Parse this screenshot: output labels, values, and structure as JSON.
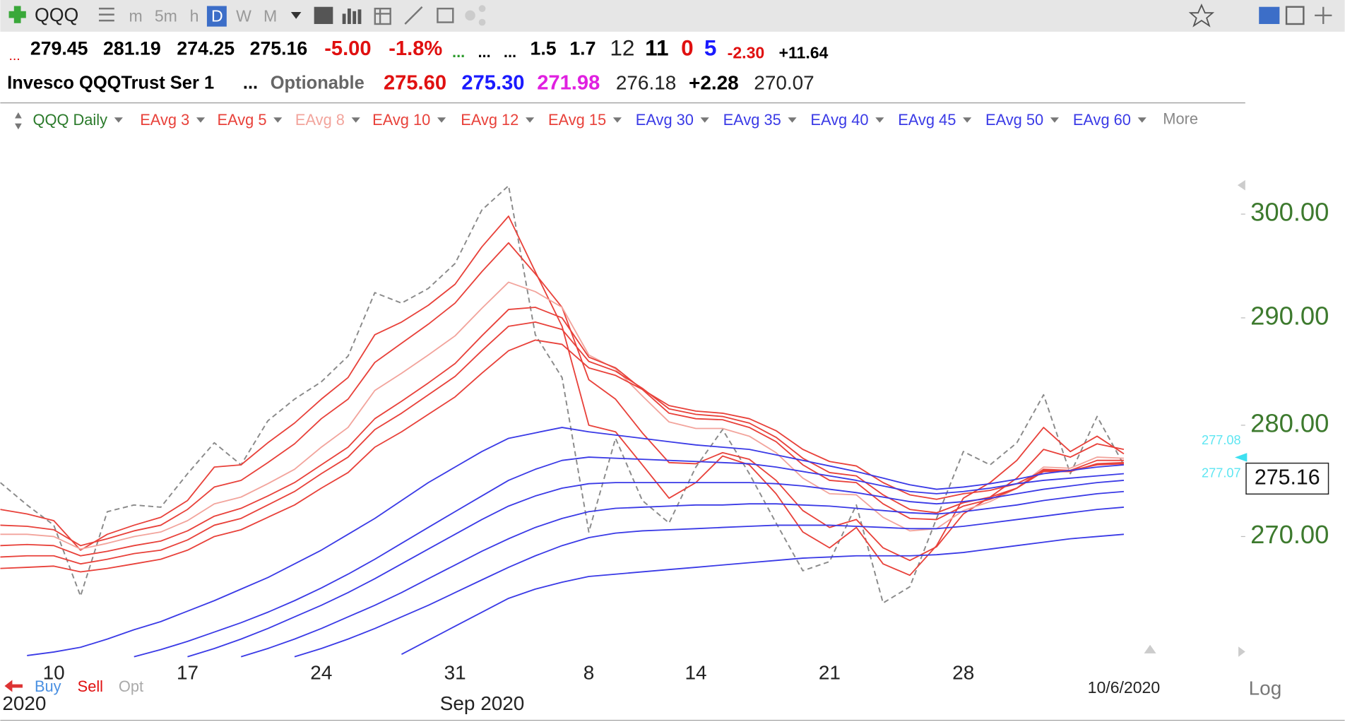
{
  "toolbar": {
    "symbol": "QQQ",
    "periods": [
      "m",
      "5m",
      "h",
      "D",
      "W",
      "M"
    ]
  },
  "quote": {
    "line1": [
      "...",
      "279.45",
      "281.19",
      "274.25",
      "275.16",
      "-5.00",
      "-1.8%",
      "...",
      "...",
      "...",
      "1.5",
      "1.7",
      "12",
      "11",
      "0",
      "5",
      "-2.30",
      "+11.64"
    ],
    "line2": [
      "Invesco QQQTrust Ser 1",
      "...",
      "Optionable",
      "275.60",
      "275.30",
      "271.98",
      "276.18",
      "+2.28",
      "270.07"
    ]
  },
  "legend_more": "More",
  "chart_data": {
    "type": "line",
    "categories": [
      null,
      null,
      "10",
      null,
      null,
      null,
      null,
      "17",
      null,
      null,
      null,
      null,
      "24",
      null,
      null,
      null,
      null,
      "31",
      null,
      null,
      null,
      null,
      "8",
      null,
      null,
      null,
      "14",
      null,
      null,
      null,
      null,
      "21",
      null,
      null,
      null,
      null,
      "28",
      null,
      null,
      null,
      null,
      null,
      null
    ],
    "period_labels": [
      "2020",
      "Sep 2020"
    ],
    "last_date": "10/6/2020",
    "log": true,
    "ylim": [
      259.3,
      308.5
    ],
    "yticks": [
      {
        "value": 270,
        "label": "270.00"
      },
      {
        "value": 280,
        "label": "280.00"
      },
      {
        "value": 290,
        "label": "290.00"
      },
      {
        "value": 300,
        "label": "300.00"
      }
    ],
    "grid": false,
    "price_markers": [
      277.08,
      277.07
    ],
    "last_price": 275.16,
    "series": [
      {
        "name": "QQQ Daily",
        "color": "#8a8a8a",
        "style": "dashed",
        "values": [
          274.8,
          272.8,
          271.0,
          264.8,
          272.2,
          272.8,
          272.6,
          275.6,
          278.4,
          276.4,
          280.4,
          282.4,
          284.0,
          286.4,
          292.4,
          291.4,
          292.8,
          295.2,
          300.4,
          302.8,
          288.4,
          284.4,
          270.4,
          278.8,
          273.2,
          271.2,
          276.2,
          279.6,
          275.6,
          271.2,
          267.0,
          267.8,
          272.8,
          264.2,
          265.6,
          271.6,
          277.6,
          276.4,
          278.4,
          282.8,
          275.6,
          280.8,
          276.4
        ]
      },
      {
        "name": "EAvg 3",
        "color": "#e8413a",
        "values": [
          272.4,
          272.0,
          271.4,
          268.8,
          270.2,
          271.0,
          271.7,
          273.2,
          276.2,
          276.4,
          278.4,
          280.2,
          282.4,
          284.4,
          288.4,
          289.6,
          291.2,
          293.2,
          296.8,
          299.8,
          294.4,
          289.2,
          280.0,
          279.4,
          276.4,
          273.4,
          274.8,
          277.2,
          276.4,
          273.8,
          270.4,
          269.0,
          270.8,
          267.6,
          266.6,
          269.2,
          273.4,
          274.8,
          276.8,
          279.8,
          277.6,
          279.0,
          277.4
        ]
      },
      {
        "name": "EAvg 5",
        "color": "#e8413a",
        "values": [
          271.0,
          270.9,
          270.6,
          269.2,
          269.8,
          270.5,
          271.0,
          272.4,
          274.4,
          275.0,
          276.6,
          278.3,
          280.6,
          282.4,
          285.8,
          287.6,
          289.4,
          291.4,
          294.4,
          297.2,
          294.2,
          291.0,
          284.2,
          282.4,
          279.3,
          276.6,
          276.5,
          277.5,
          276.9,
          275.0,
          272.3,
          270.8,
          271.5,
          269.0,
          267.9,
          269.1,
          272.0,
          273.5,
          275.2,
          277.8,
          277.1,
          278.3,
          277.8
        ]
      },
      {
        "name": "EAvg 8",
        "color": "#f2a49c",
        "values": [
          270.2,
          270.2,
          270.0,
          268.9,
          269.4,
          270.0,
          270.4,
          271.4,
          272.9,
          273.5,
          274.7,
          276.0,
          278.0,
          279.8,
          283.2,
          284.8,
          286.5,
          288.3,
          290.9,
          293.4,
          292.5,
          291.0,
          286.5,
          285.2,
          282.7,
          280.3,
          279.7,
          279.7,
          279.0,
          277.5,
          275.2,
          273.8,
          273.7,
          271.7,
          270.5,
          270.7,
          272.3,
          273.1,
          274.3,
          276.2,
          276.1,
          277.1,
          277.0
        ]
      },
      {
        "name": "EAvg 10",
        "color": "#e8413a",
        "values": [
          269.2,
          269.3,
          269.2,
          268.3,
          268.7,
          269.2,
          269.6,
          270.5,
          271.8,
          272.5,
          273.6,
          274.8,
          276.4,
          278.0,
          280.6,
          282.2,
          283.9,
          285.7,
          288.3,
          290.8,
          291.0,
          290.0,
          286.3,
          285.3,
          283.3,
          281.1,
          280.6,
          280.5,
          279.8,
          278.5,
          276.4,
          275.0,
          274.8,
          272.9,
          271.6,
          271.5,
          272.7,
          273.3,
          274.3,
          276.0,
          275.9,
          276.8,
          276.8
        ]
      },
      {
        "name": "EAvg 12",
        "color": "#e8413a",
        "values": [
          268.2,
          268.3,
          268.3,
          267.6,
          268.0,
          268.5,
          268.8,
          269.7,
          271.0,
          271.6,
          272.8,
          274.0,
          275.6,
          277.1,
          279.6,
          281.1,
          282.8,
          284.5,
          286.9,
          289.2,
          289.6,
          288.9,
          285.9,
          285.0,
          283.4,
          281.5,
          281.0,
          280.8,
          280.2,
          278.9,
          277.0,
          275.7,
          275.4,
          273.7,
          272.4,
          272.1,
          273.0,
          273.5,
          274.3,
          275.8,
          275.8,
          276.5,
          276.6
        ]
      },
      {
        "name": "EAvg 15",
        "color": "#e8413a",
        "values": [
          267.2,
          267.3,
          267.4,
          266.9,
          267.2,
          267.6,
          268.0,
          268.8,
          270.0,
          270.6,
          271.7,
          272.8,
          274.3,
          275.7,
          278.0,
          279.4,
          281.0,
          282.6,
          284.8,
          286.9,
          287.9,
          287.5,
          285.3,
          284.6,
          283.3,
          281.8,
          281.3,
          281.1,
          280.6,
          279.5,
          277.8,
          276.7,
          276.3,
          274.8,
          273.7,
          273.3,
          273.8,
          274.1,
          274.7,
          275.9,
          275.9,
          276.4,
          276.5
        ]
      },
      {
        "name": "EAvg 30",
        "color": "#3a3ae6",
        "values": [
          null,
          259.7,
          260.0,
          260.4,
          261.1,
          261.9,
          262.6,
          263.5,
          264.4,
          265.4,
          266.4,
          267.6,
          268.8,
          270.2,
          271.6,
          273.2,
          274.8,
          276.2,
          277.6,
          278.8,
          279.3,
          279.8,
          279.4,
          279.1,
          278.8,
          278.5,
          278.2,
          278.0,
          277.8,
          277.3,
          276.8,
          276.3,
          275.8,
          275.2,
          274.6,
          274.2,
          274.4,
          274.7,
          275.1,
          275.6,
          275.9,
          276.2,
          276.4
        ]
      },
      {
        "name": "EAvg 35",
        "color": "#3a3ae6",
        "values": [
          null,
          null,
          null,
          null,
          null,
          259.6,
          260.2,
          260.9,
          261.7,
          262.5,
          263.4,
          264.4,
          265.5,
          266.7,
          268.0,
          269.4,
          270.8,
          272.2,
          273.6,
          275.0,
          276.0,
          276.8,
          277.1,
          277.0,
          276.9,
          276.8,
          276.7,
          276.6,
          276.5,
          276.2,
          275.8,
          275.4,
          275.0,
          274.5,
          274.0,
          273.8,
          274.0,
          274.3,
          274.7,
          275.0,
          275.2,
          275.4,
          275.6
        ]
      },
      {
        "name": "EAvg 40",
        "color": "#3a3ae6",
        "values": [
          null,
          null,
          null,
          null,
          null,
          null,
          null,
          259.6,
          260.3,
          261.1,
          262.0,
          263.0,
          264.0,
          265.1,
          266.3,
          267.6,
          268.9,
          270.2,
          271.5,
          272.7,
          273.6,
          274.3,
          274.7,
          274.8,
          274.8,
          274.8,
          274.8,
          274.8,
          274.8,
          274.7,
          274.5,
          274.2,
          273.9,
          273.5,
          273.1,
          272.9,
          273.1,
          273.4,
          273.8,
          274.2,
          274.5,
          274.8,
          275.0
        ]
      },
      {
        "name": "EAvg 45",
        "color": "#3a3ae6",
        "values": [
          null,
          null,
          null,
          null,
          null,
          null,
          null,
          null,
          null,
          259.6,
          260.3,
          261.1,
          262.0,
          263.0,
          264.0,
          265.1,
          266.3,
          267.5,
          268.7,
          269.8,
          270.8,
          271.6,
          272.2,
          272.5,
          272.6,
          272.7,
          272.8,
          272.8,
          272.9,
          272.9,
          272.8,
          272.7,
          272.5,
          272.3,
          272.1,
          272.0,
          272.2,
          272.5,
          272.8,
          273.2,
          273.5,
          273.8,
          274.0
        ]
      },
      {
        "name": "EAvg 50",
        "color": "#3a3ae6",
        "values": [
          null,
          null,
          null,
          null,
          null,
          null,
          null,
          null,
          null,
          null,
          null,
          259.6,
          260.3,
          261.1,
          262.0,
          263.0,
          264.0,
          265.1,
          266.2,
          267.3,
          268.3,
          269.2,
          269.9,
          270.3,
          270.5,
          270.6,
          270.7,
          270.8,
          270.9,
          271.0,
          271.0,
          271.0,
          270.9,
          270.8,
          270.7,
          270.7,
          270.9,
          271.2,
          271.5,
          271.8,
          272.1,
          272.4,
          272.6
        ]
      },
      {
        "name": "EAvg 60",
        "color": "#3a3ae6",
        "values": [
          null,
          null,
          null,
          null,
          null,
          null,
          null,
          null,
          null,
          null,
          null,
          null,
          null,
          null,
          null,
          259.8,
          261.0,
          262.2,
          263.4,
          264.6,
          265.4,
          266.0,
          266.5,
          266.7,
          266.9,
          267.1,
          267.3,
          267.5,
          267.7,
          267.9,
          268.1,
          268.2,
          268.3,
          268.3,
          268.3,
          268.4,
          268.6,
          268.9,
          269.2,
          269.5,
          269.8,
          270.0,
          270.2
        ]
      }
    ]
  },
  "footer": {
    "trade_buttons": [
      "Buy",
      "Sell",
      "Opt"
    ],
    "scale_label": "Log"
  }
}
